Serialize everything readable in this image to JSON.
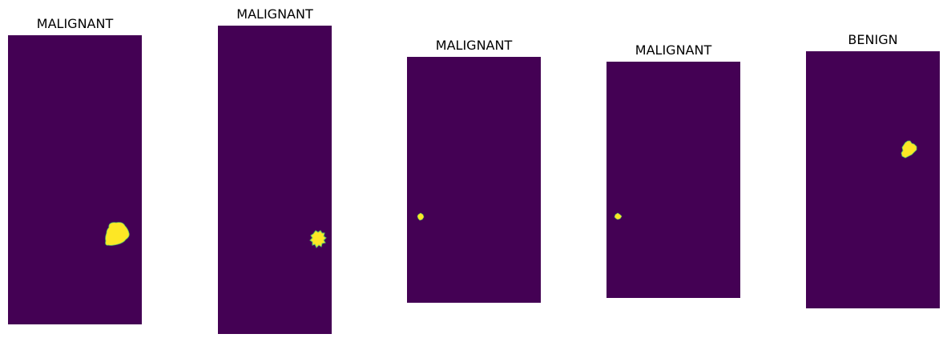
{
  "colors": {
    "background": "#440154",
    "lesion": "#fde725",
    "lesion_edge": "#5ec962"
  },
  "panels": [
    {
      "title": "MALIGNANT"
    },
    {
      "title": "MALIGNANT"
    },
    {
      "title": "MALIGNANT"
    },
    {
      "title": "MALIGNANT"
    },
    {
      "title": "BENIGN"
    }
  ]
}
